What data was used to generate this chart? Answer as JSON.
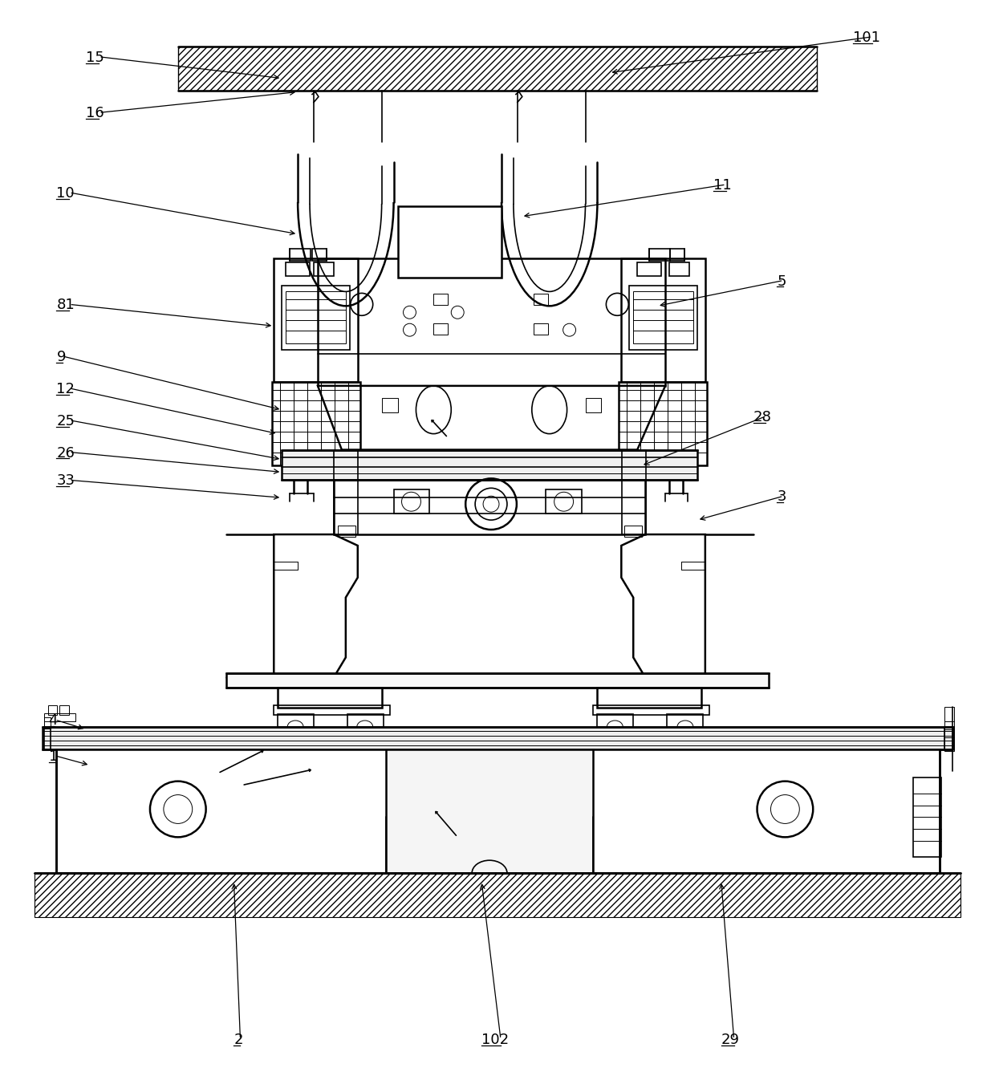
{
  "bg_color": "#ffffff",
  "line_color": "#000000",
  "fig_width": 12.4,
  "fig_height": 13.51,
  "dpi": 100
}
